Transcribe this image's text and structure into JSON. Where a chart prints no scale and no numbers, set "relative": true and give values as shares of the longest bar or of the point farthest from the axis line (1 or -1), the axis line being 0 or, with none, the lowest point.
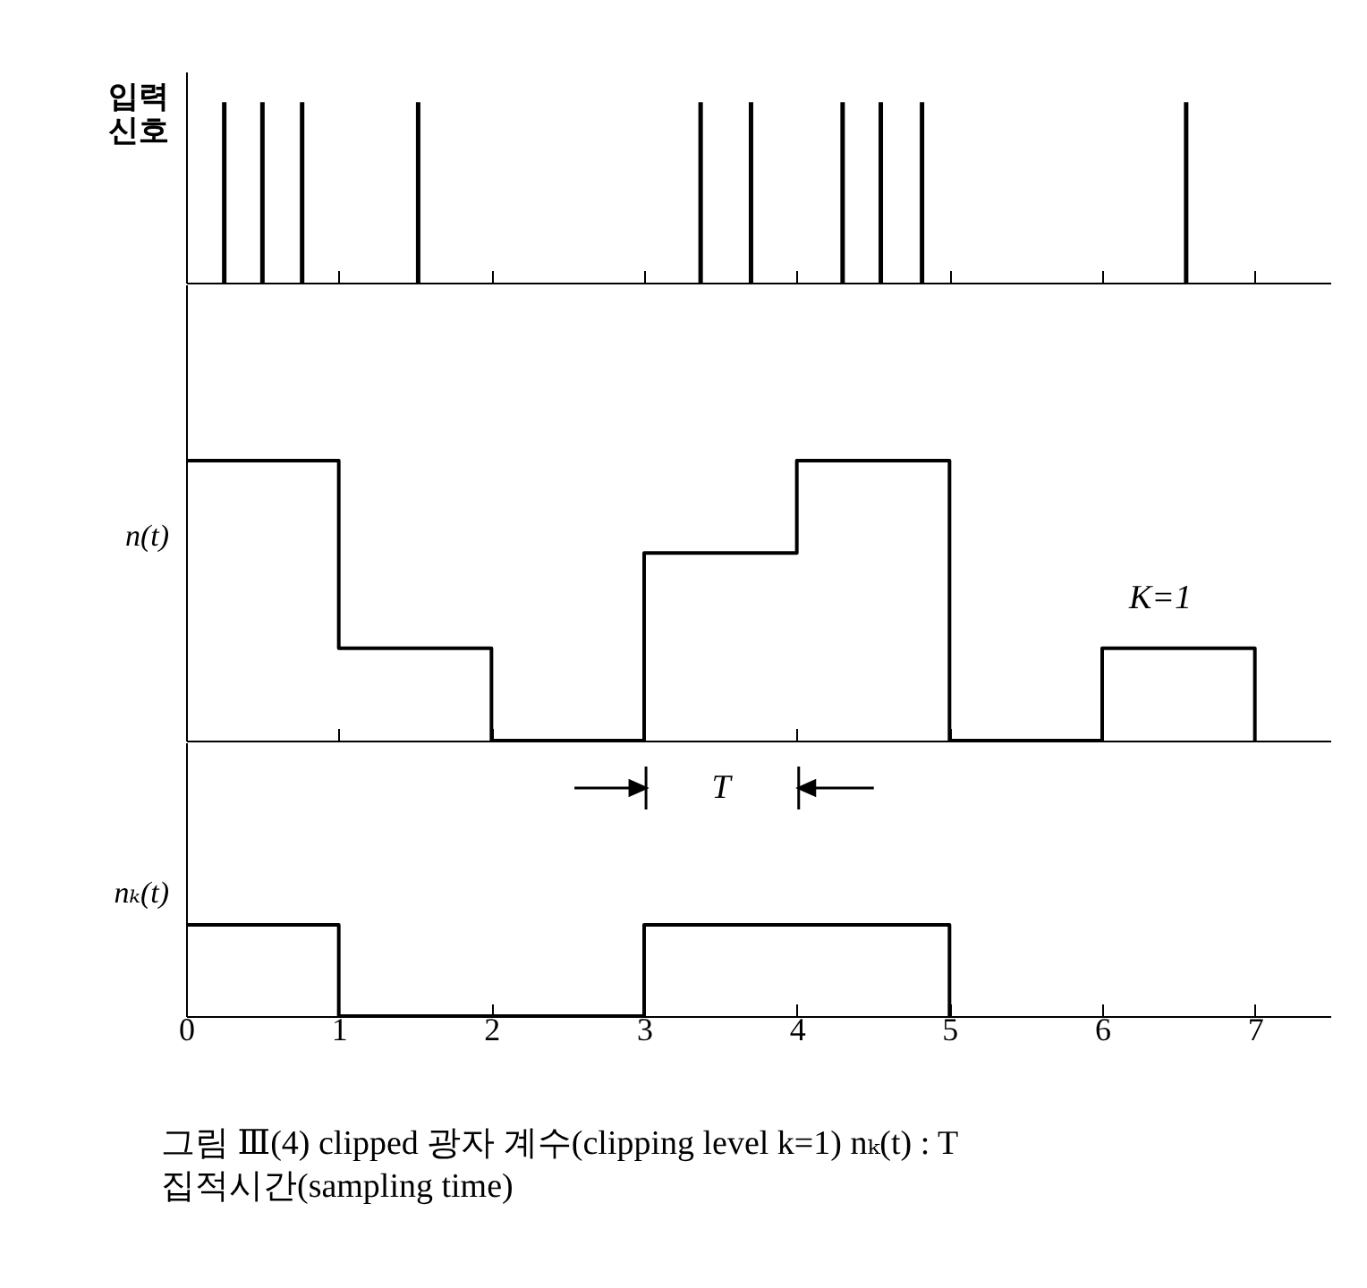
{
  "chart_data": [
    {
      "type": "bar",
      "ylabel": "입력 신호",
      "x": [
        0.25,
        0.5,
        0.76,
        1.52,
        3.37,
        3.7,
        4.3,
        4.55,
        4.82,
        6.55
      ],
      "values": [
        1,
        1,
        1,
        1,
        1,
        1,
        1,
        1,
        1,
        1
      ],
      "color": "#000000",
      "relative": true,
      "xlim": [
        0,
        7.5
      ],
      "xticks": [
        0,
        1,
        2,
        3,
        4,
        5,
        6,
        7
      ],
      "tick_labels": false
    },
    {
      "type": "step",
      "ylabel": "n(t)",
      "x": [
        0,
        1,
        2,
        3,
        4,
        5,
        6,
        7
      ],
      "values": [
        1,
        0.33,
        0,
        0.67,
        1,
        0,
        0.33,
        0
      ],
      "color": "#000000",
      "relative": true,
      "xlim": [
        0,
        7.5
      ],
      "xticks": [
        0,
        1,
        2,
        3,
        4,
        5,
        6,
        7
      ],
      "tick_labels": false,
      "annotations": [
        "K=1"
      ]
    },
    {
      "type": "step",
      "ylabel": "nₖ(t)",
      "x": [
        0,
        1,
        3,
        5
      ],
      "values": [
        1,
        0,
        1,
        0
      ],
      "color": "#000000",
      "relative": true,
      "xlim": [
        0,
        7.5
      ],
      "xticks": [
        0,
        1,
        2,
        3,
        4,
        5,
        6,
        7
      ],
      "tick_labels": "x",
      "annotations": [
        "T",
        "그림 Ⅲ(4)  clipped 광자 계수(clipping level k=1) nₖ(t) : T",
        "집적시간(sampling time)"
      ]
    }
  ]
}
